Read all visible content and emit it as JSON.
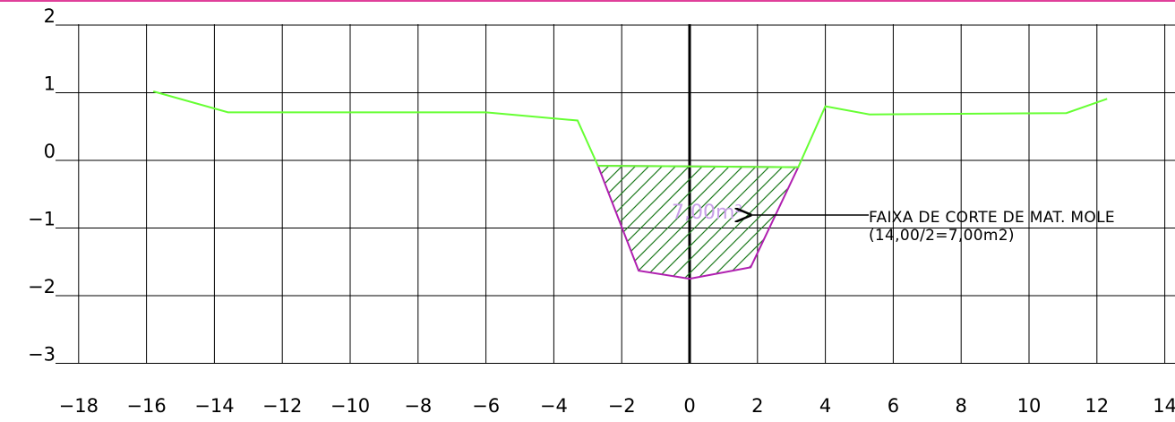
{
  "colors": {
    "top_border": "#e0409a",
    "grid": "#000000",
    "terrain": "#66ff33",
    "cut_outline": "#b020b0",
    "cut_hatch": "#1e7a1e",
    "area_label": "#c9a0e8",
    "text": "#000000"
  },
  "axes": {
    "x_ticks": [
      -18,
      -16,
      -14,
      -12,
      -10,
      -8,
      -6,
      -4,
      -2,
      0,
      2,
      4,
      6,
      8,
      10,
      12,
      14
    ],
    "x_tick_labels": [
      "−18",
      "−16",
      "−14",
      "−12",
      "−10",
      "−8",
      "−6",
      "−4",
      "−2",
      "0",
      "2",
      "4",
      "6",
      "8",
      "10",
      "12",
      "14"
    ],
    "y_ticks": [
      2,
      1,
      0,
      -1,
      -2,
      -3
    ],
    "y_tick_labels": [
      "2",
      "1",
      "0",
      "−1",
      "−2",
      "−3"
    ],
    "x_range": [
      -18,
      14
    ],
    "y_range": [
      -3,
      2
    ]
  },
  "terrain_profile": [
    [
      -15.8,
      1.02
    ],
    [
      -13.6,
      0.71
    ],
    [
      -6.0,
      0.71
    ],
    [
      -3.3,
      0.59
    ],
    [
      -2.7,
      -0.08
    ],
    [
      3.2,
      -0.1
    ],
    [
      4.0,
      0.8
    ],
    [
      5.3,
      0.68
    ],
    [
      11.1,
      0.7
    ],
    [
      12.3,
      0.91
    ]
  ],
  "cut_section": {
    "polygon": [
      [
        -2.7,
        -0.08
      ],
      [
        3.2,
        -0.1
      ],
      [
        1.8,
        -1.58
      ],
      [
        0.0,
        -1.75
      ],
      [
        -1.5,
        -1.63
      ]
    ],
    "area_label": "7,00m²"
  },
  "annotation": {
    "line1": "FAIXA DE CORTE DE MAT. MOLE",
    "line2": "(14,00/2=7,00m2)"
  }
}
